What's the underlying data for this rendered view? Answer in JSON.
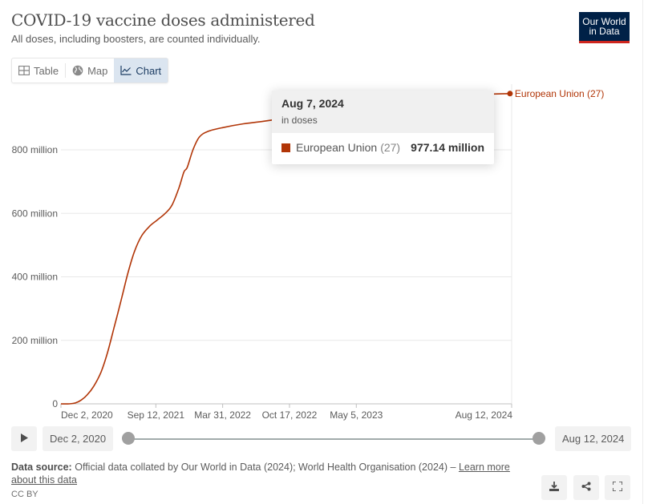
{
  "header": {
    "title": "COVID-19 vaccine doses administered",
    "subtitle": "All doses, including boosters, are counted individually.",
    "logo_line1": "Our World",
    "logo_line2": "in Data"
  },
  "tabs": [
    {
      "label": "Table",
      "icon": "table-icon",
      "active": false
    },
    {
      "label": "Map",
      "icon": "globe-icon",
      "active": false
    },
    {
      "label": "Chart",
      "icon": "line-chart-icon",
      "active": true
    }
  ],
  "tooltip": {
    "date": "Aug 7, 2024",
    "unit": "in doses",
    "entity": "European Union",
    "entity_count": "(27)",
    "value": "977.14 million",
    "color": "#b13507"
  },
  "timeline": {
    "start_label": "Dec 2, 2020",
    "end_label": "Aug 12, 2024",
    "play_icon": "play-icon"
  },
  "footer": {
    "source_label": "Data source:",
    "source_text": "Official data collated by Our World in Data (2024); World Health Organisation (2024) –",
    "learn_more": "Learn more about this data",
    "license": "CC BY",
    "actions": [
      {
        "name": "download-button",
        "icon": "download-icon"
      },
      {
        "name": "share-button",
        "icon": "share-icon"
      },
      {
        "name": "fullscreen-button",
        "icon": "fullscreen-icon"
      }
    ]
  },
  "chart_data": {
    "type": "line",
    "title": "COVID-19 vaccine doses administered",
    "subtitle": "All doses, including boosters, are counted individually.",
    "xlabel": "",
    "ylabel": "",
    "x_range": [
      "2020-12-02",
      "2024-08-12"
    ],
    "ylim": [
      0,
      1000000000
    ],
    "grid": true,
    "legend": "end-of-line label",
    "y_ticks": [
      {
        "value": 0,
        "label": "0"
      },
      {
        "value": 200000000,
        "label": "200 million"
      },
      {
        "value": 400000000,
        "label": "400 million"
      },
      {
        "value": 600000000,
        "label": "600 million"
      },
      {
        "value": 800000000,
        "label": "800 million"
      }
    ],
    "x_ticks": [
      {
        "date": "2020-12-02",
        "label": "Dec 2, 2020"
      },
      {
        "date": "2021-09-12",
        "label": "Sep 12, 2021"
      },
      {
        "date": "2022-03-31",
        "label": "Mar 31, 2022"
      },
      {
        "date": "2022-10-17",
        "label": "Oct 17, 2022"
      },
      {
        "date": "2023-05-05",
        "label": "May 5, 2023"
      },
      {
        "date": "2024-08-12",
        "label": "Aug 12, 2024"
      }
    ],
    "series": [
      {
        "name": "European Union (27)",
        "color": "#b13507",
        "points": [
          [
            "2020-12-02",
            0
          ],
          [
            "2020-12-27",
            0
          ],
          [
            "2021-01-15",
            3000000
          ],
          [
            "2021-02-01",
            12000000
          ],
          [
            "2021-02-20",
            30000000
          ],
          [
            "2021-03-10",
            55000000
          ],
          [
            "2021-04-01",
            100000000
          ],
          [
            "2021-04-20",
            160000000
          ],
          [
            "2021-05-10",
            240000000
          ],
          [
            "2021-06-01",
            330000000
          ],
          [
            "2021-06-20",
            410000000
          ],
          [
            "2021-07-10",
            480000000
          ],
          [
            "2021-08-01",
            530000000
          ],
          [
            "2021-08-25",
            560000000
          ],
          [
            "2021-09-15",
            578000000
          ],
          [
            "2021-10-10",
            600000000
          ],
          [
            "2021-10-30",
            625000000
          ],
          [
            "2021-11-20",
            680000000
          ],
          [
            "2021-12-05",
            730000000
          ],
          [
            "2021-12-15",
            745000000
          ],
          [
            "2022-01-01",
            800000000
          ],
          [
            "2022-01-20",
            840000000
          ],
          [
            "2022-02-15",
            858000000
          ],
          [
            "2022-03-31",
            870000000
          ],
          [
            "2022-06-01",
            882000000
          ],
          [
            "2022-08-01",
            890000000
          ],
          [
            "2022-10-17",
            903000000
          ],
          [
            "2022-12-31",
            920000000
          ],
          [
            "2023-05-05",
            940000000
          ],
          [
            "2023-10-01",
            958000000
          ],
          [
            "2024-03-01",
            972000000
          ],
          [
            "2024-08-07",
            977140000
          ]
        ]
      }
    ],
    "highlight": {
      "date": "2024-08-07",
      "value": 977140000,
      "label": "977.14 million"
    }
  }
}
